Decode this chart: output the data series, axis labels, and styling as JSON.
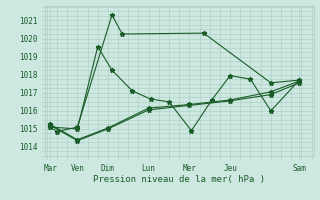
{
  "background_color": "#cce8e0",
  "grid_color": "#aaccc4",
  "line_color": "#1a5c28",
  "xlabel": "Pression niveau de la mer( hPa )",
  "ylim": [
    1013.5,
    1021.8
  ],
  "yticks": [
    1014,
    1015,
    1016,
    1017,
    1018,
    1019,
    1020,
    1021
  ],
  "xlim": [
    -0.05,
    6.55
  ],
  "xtick_labels": [
    "Mar",
    "Ven",
    "Dim",
    "Lun",
    "Mer",
    "Jeu",
    "Sam"
  ],
  "xtick_positions": [
    0.08,
    0.75,
    1.5,
    2.5,
    3.5,
    4.5,
    6.2
  ],
  "s1_x": [
    0.08,
    0.25,
    0.75,
    1.6,
    1.85,
    3.85,
    5.5,
    6.2
  ],
  "s1_y": [
    1015.1,
    1014.85,
    1015.1,
    1021.3,
    1020.25,
    1020.3,
    1017.55,
    1017.7
  ],
  "s2_x": [
    0.08,
    0.75,
    1.25,
    1.6,
    2.1,
    2.55,
    3.0,
    3.55,
    4.05,
    4.5,
    5.0,
    5.5,
    6.2
  ],
  "s2_y": [
    1015.1,
    1015.0,
    1019.55,
    1018.25,
    1017.1,
    1016.65,
    1016.5,
    1014.9,
    1016.6,
    1017.95,
    1017.75,
    1016.0,
    1017.7
  ],
  "s3_x": [
    0.08,
    0.75,
    1.5,
    2.5,
    3.5,
    4.5,
    5.5,
    6.2
  ],
  "s3_y": [
    1015.2,
    1014.35,
    1015.0,
    1016.05,
    1016.3,
    1016.55,
    1016.9,
    1017.55
  ],
  "s4_x": [
    0.08,
    0.75,
    1.5,
    2.5,
    3.5,
    4.5,
    5.5,
    6.2
  ],
  "s4_y": [
    1015.25,
    1014.4,
    1015.05,
    1016.15,
    1016.35,
    1016.6,
    1017.05,
    1017.65
  ]
}
